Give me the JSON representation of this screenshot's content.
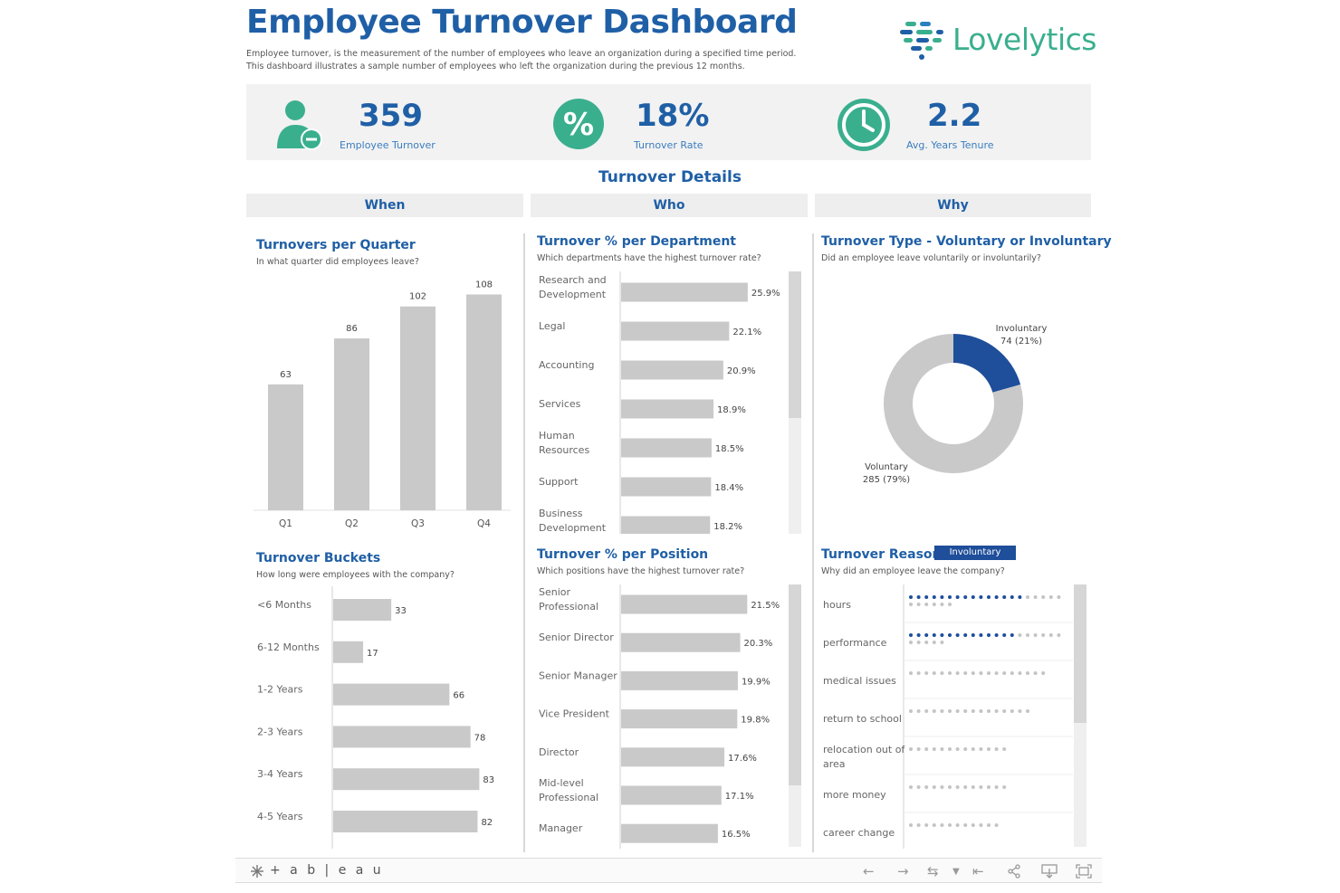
{
  "header": {
    "title": "Employee Turnover Dashboard",
    "description_line1": "Employee turnover, is the measurement of the number of employees who leave an organization during a specified time period.",
    "description_line2": "This dashboard illustrates a sample number of employees who left the organization during the previous 12 months.",
    "logo_text": "Lovelytics"
  },
  "kpis": [
    {
      "value": "359",
      "label": "Employee Turnover",
      "icon": "user-minus-icon"
    },
    {
      "value": "18%",
      "label": "Turnover Rate",
      "icon": "percent-icon"
    },
    {
      "value": "2.2",
      "label": "Avg. Years Tenure",
      "icon": "clock-icon"
    }
  ],
  "section_title": "Turnover Details",
  "columns": {
    "when": "When",
    "who": "Who",
    "why": "Why"
  },
  "colors": {
    "brand_blue": "#1f5fa6",
    "accent_blue": "#1f4e9a",
    "bar_gray": "#c9c9c9",
    "green": "#3aaf8e",
    "dot_gray": "#c4c4c4"
  },
  "chart_data": [
    {
      "id": "turnovers_per_quarter",
      "type": "bar",
      "title": "Turnovers per Quarter",
      "subtitle": "In what quarter did employees leave?",
      "categories": [
        "Q1",
        "Q2",
        "Q3",
        "Q4"
      ],
      "values": [
        63,
        86,
        102,
        108
      ],
      "value_labels": [
        "63",
        "86",
        "102",
        "108"
      ],
      "ylim": [
        0,
        115
      ]
    },
    {
      "id": "turnover_buckets",
      "type": "bar",
      "orientation": "horizontal",
      "title": "Turnover Buckets",
      "subtitle": "How long were employees with the company?",
      "categories": [
        "<6 Months",
        "6-12 Months",
        "1-2 Years",
        "2-3 Years",
        "3-4 Years",
        "4-5 Years"
      ],
      "values": [
        33,
        17,
        66,
        78,
        83,
        82
      ],
      "value_labels": [
        "33",
        "17",
        "66",
        "78",
        "83",
        "82"
      ],
      "xlim": [
        0,
        90
      ]
    },
    {
      "id": "turnover_pct_department",
      "type": "bar",
      "orientation": "horizontal",
      "title": "Turnover % per Department",
      "subtitle": "Which departments have the highest turnover rate?",
      "categories": [
        [
          "Research and",
          "Development"
        ],
        [
          "Legal"
        ],
        [
          "Accounting"
        ],
        [
          "Services"
        ],
        [
          "Human",
          "Resources"
        ],
        [
          "Support"
        ],
        [
          "Business",
          "Development"
        ]
      ],
      "values": [
        25.9,
        22.1,
        20.9,
        18.9,
        18.5,
        18.4,
        18.2
      ],
      "value_labels": [
        "25.9%",
        "22.1%",
        "20.9%",
        "18.9%",
        "18.5%",
        "18.4%",
        "18.2%"
      ],
      "xlim": [
        0,
        30
      ]
    },
    {
      "id": "turnover_pct_position",
      "type": "bar",
      "orientation": "horizontal",
      "title": "Turnover % per Position",
      "subtitle": "Which positions have the highest turnover rate?",
      "categories": [
        [
          "Senior",
          "Professional"
        ],
        [
          "Senior Director"
        ],
        [
          "Senior Manager"
        ],
        [
          "Vice President"
        ],
        [
          "Director"
        ],
        [
          "Mid-level",
          "Professional"
        ],
        [
          "Manager"
        ]
      ],
      "values": [
        21.5,
        20.3,
        19.9,
        19.8,
        17.6,
        17.1,
        16.5
      ],
      "value_labels": [
        "21.5%",
        "20.3%",
        "19.9%",
        "19.8%",
        "17.6%",
        "17.1%",
        "16.5%"
      ],
      "xlim": [
        0,
        25
      ]
    },
    {
      "id": "turnover_type",
      "type": "pie",
      "title": "Turnover Type - Voluntary or Involuntary",
      "subtitle": "Did an employee leave voluntarily or involuntarily?",
      "slices": [
        {
          "name": "Involuntary",
          "value": 74,
          "label": "74 (21%)",
          "color": "#1f4e9a"
        },
        {
          "name": "Voluntary",
          "value": 285,
          "label": "285 (79%)",
          "color": "#c9c9c9"
        }
      ]
    },
    {
      "id": "turnover_reason",
      "type": "dot",
      "title": "Turnover Reason",
      "subtitle": "Why did an employee leave the company?",
      "filter_badge": "Involuntary",
      "categories": [
        "hours",
        "performance",
        "medical issues",
        "return to school",
        "relocation out of area",
        "more money",
        "career change"
      ],
      "values": [
        26,
        25,
        18,
        16,
        13,
        13,
        12
      ],
      "highlighted": [
        15,
        14,
        0,
        0,
        0,
        0,
        0
      ]
    }
  ],
  "footer": {
    "brand": "+ a b | e a u"
  }
}
